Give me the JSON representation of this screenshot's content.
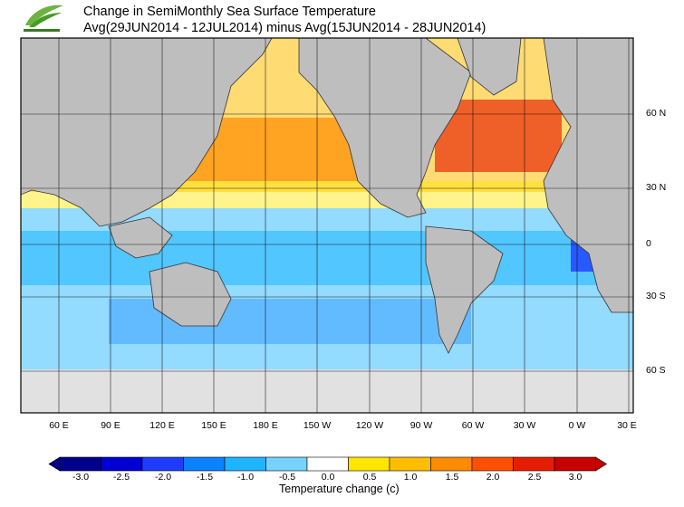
{
  "title": {
    "line1": "Change in SemiMonthly Sea Surface Temperature",
    "line2": "Avg(29JUN2014 - 12JUL2014) minus Avg(15JUN2014 - 28JUN2014)"
  },
  "map": {
    "lat_labels": [
      "60 N",
      "30 N",
      "0",
      "30 S",
      "60 S"
    ],
    "lon_labels": [
      "60 E",
      "90 E",
      "120 E",
      "150 E",
      "180 E",
      "150 W",
      "120 W",
      "90 W",
      "60 W",
      "30 W",
      "0 W",
      "30 E"
    ],
    "land_color": "#bebebe",
    "ice_color": "#e1e1e1"
  },
  "colorbar": {
    "title": "Temperature change  (c)",
    "ticks": [
      "-3.0",
      "-2.5",
      "-2.0",
      "-1.5",
      "-1.0",
      "-0.5",
      "0.0",
      "0.5",
      "1.0",
      "1.5",
      "2.0",
      "2.5",
      "3.0"
    ],
    "colors": [
      "#00008c",
      "#0000d2",
      "#1e3cff",
      "#0a82ff",
      "#1eb4ff",
      "#78d2ff",
      "#ffffff",
      "#ffe600",
      "#ffbe00",
      "#ff8c00",
      "#ff5000",
      "#e61e00",
      "#c80000"
    ]
  },
  "logo_icon": "leaf-logo-icon"
}
